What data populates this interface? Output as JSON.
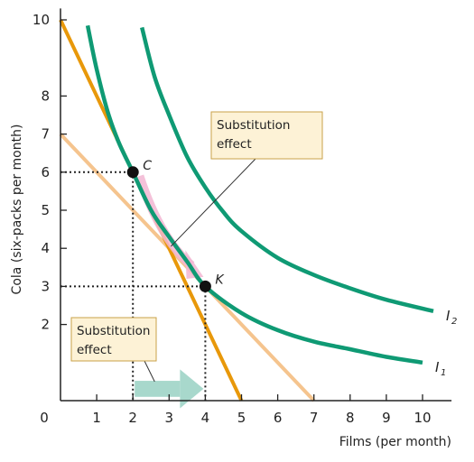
{
  "chart_data": {
    "type": "line",
    "xlabel": "Films (per month)",
    "ylabel": "Cola (six-packs per month)",
    "xlim": [
      0,
      10.8
    ],
    "ylim": [
      0,
      10.3
    ],
    "x_ticks": [
      {
        "value": 0,
        "label": "0"
      },
      {
        "value": 1,
        "label": "1"
      },
      {
        "value": 2,
        "label": "2"
      },
      {
        "value": 3,
        "label": "3"
      },
      {
        "value": 4,
        "label": "4"
      },
      {
        "value": 5,
        "label": "5"
      },
      {
        "value": 6,
        "label": "6"
      },
      {
        "value": 7,
        "label": "7"
      },
      {
        "value": 8,
        "label": "8"
      },
      {
        "value": 9,
        "label": "9"
      },
      {
        "value": 10,
        "label": "10"
      }
    ],
    "y_ticks": [
      {
        "value": 2,
        "label": "2"
      },
      {
        "value": 3,
        "label": "3"
      },
      {
        "value": 4,
        "label": "4"
      },
      {
        "value": 5,
        "label": "5"
      },
      {
        "value": 6,
        "label": "6"
      },
      {
        "value": 7,
        "label": "7"
      },
      {
        "value": 8,
        "label": "8"
      },
      {
        "value": 10,
        "label": "10"
      }
    ],
    "budget_lines": [
      {
        "x": [
          0,
          5
        ],
        "y": [
          10,
          0
        ],
        "color": "#e8980a"
      },
      {
        "x": [
          0,
          7
        ],
        "y": [
          7,
          0
        ],
        "color": "#f5c48e"
      }
    ],
    "indifference_curves": [
      {
        "label": "I",
        "subscript": "1",
        "color": "#0f9a74",
        "x": [
          0.75,
          1.0,
          1.3,
          1.6,
          2.0,
          2.5,
          3.0,
          3.5,
          4.0,
          5.0,
          6.0,
          7.0,
          8.0,
          9.0,
          10.0
        ],
        "y": [
          9.85,
          8.7,
          7.6,
          6.8,
          6.0,
          5.0,
          4.3,
          3.65,
          3.0,
          2.3,
          1.85,
          1.55,
          1.35,
          1.15,
          1.0
        ]
      },
      {
        "label": "I",
        "subscript": "2",
        "color": "#0f9a74",
        "x": [
          2.25,
          2.6,
          3.0,
          3.5,
          4.0,
          4.5,
          5.0,
          6.0,
          7.0,
          8.0,
          9.0,
          10.3
        ],
        "y": [
          9.8,
          8.5,
          7.5,
          6.4,
          5.6,
          4.95,
          4.45,
          3.75,
          3.3,
          2.95,
          2.65,
          2.35
        ]
      }
    ],
    "points": [
      {
        "label": "C",
        "x": 2,
        "y": 6
      },
      {
        "label": "K",
        "x": 4,
        "y": 3
      }
    ],
    "callouts": [
      {
        "lines": [
          "Substitution",
          "effect"
        ]
      },
      {
        "lines": [
          "Substitution",
          "effect"
        ]
      }
    ],
    "colors": {
      "axis": "#222222",
      "curve": "#0f9a74",
      "budget_new": "#e8980a",
      "budget_old": "#f5c48e",
      "arrow_curve": "#f2b6d2",
      "arrow_axis": "#a8d8cc",
      "callout_fill": "#fdf2d6",
      "callout_border": "#c9a24a"
    }
  }
}
